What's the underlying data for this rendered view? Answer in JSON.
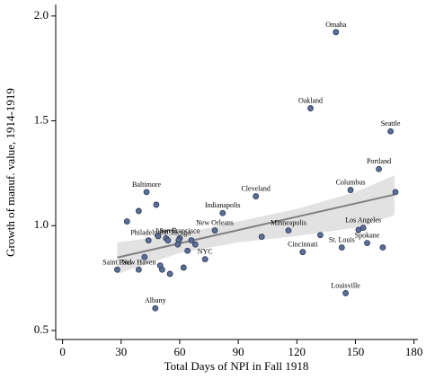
{
  "chart_data": {
    "type": "scatter",
    "xlabel": "Total Days of NPI in Fall 1918",
    "ylabel": "Growth of manuf. value, 1914-1919",
    "xlim": [
      -3.5,
      182
    ],
    "ylim": [
      0.457,
      2.055
    ],
    "xticks": [
      0,
      30,
      60,
      90,
      120,
      150,
      180
    ],
    "yticks": [
      0.5,
      {
        "value": 1.0,
        "label": "1.0"
      },
      1.5,
      {
        "value": 2.0,
        "label": "2.0"
      }
    ],
    "color": "#5b6f99",
    "fit_color": "#808080",
    "band_color": "#e2e2e2",
    "x": [
      140,
      127,
      168,
      162,
      147.5,
      170.5,
      99,
      43,
      82,
      115.7,
      78,
      151.6,
      154,
      132,
      102,
      123,
      143,
      156,
      164,
      145,
      47.5,
      28,
      39,
      73,
      33,
      39,
      48,
      44,
      49,
      53,
      54,
      60,
      59.5,
      59,
      66,
      68,
      64,
      42,
      50,
      51,
      55,
      62
    ],
    "y": [
      1.923,
      1.56,
      1.45,
      1.27,
      1.17,
      1.16,
      1.14,
      1.16,
      1.06,
      0.977,
      0.977,
      0.98,
      0.99,
      0.955,
      0.947,
      0.874,
      0.896,
      0.917,
      0.896,
      0.678,
      0.606,
      0.79,
      0.79,
      0.84,
      1.02,
      1.07,
      1.1,
      0.93,
      0.95,
      0.94,
      0.93,
      0.94,
      0.93,
      0.91,
      0.93,
      0.91,
      0.88,
      0.85,
      0.81,
      0.79,
      0.77,
      0.8
    ],
    "labels": [
      "Omaha",
      "Oakland",
      "Seattle",
      "Portland",
      "Columbus",
      null,
      "Cleveland",
      "Baltimore",
      "Indianapolis",
      "Minneapolis",
      "New Orleans",
      null,
      "Los Angeles",
      null,
      null,
      "Cincinnati",
      "St. Louis",
      "Spokane",
      null,
      "Louisville",
      "Albany",
      "Saint Paul",
      "New Haven",
      "NYC",
      null,
      null,
      null,
      "Philadelphia",
      null,
      "Lowell",
      null,
      "San Francisco",
      "Chicago",
      null,
      null,
      null,
      null,
      null,
      null,
      null,
      null,
      null
    ],
    "fit": {
      "x": [
        28,
        170
      ],
      "y": [
        0.848,
        1.148
      ]
    },
    "ci": {
      "x": [
        28,
        60,
        90,
        120,
        150,
        170
      ],
      "lower": [
        0.77,
        0.87,
        0.92,
        0.95,
        0.99,
        1.05
      ],
      "upper": [
        0.92,
        0.96,
        1.02,
        1.08,
        1.16,
        1.24
      ]
    }
  }
}
